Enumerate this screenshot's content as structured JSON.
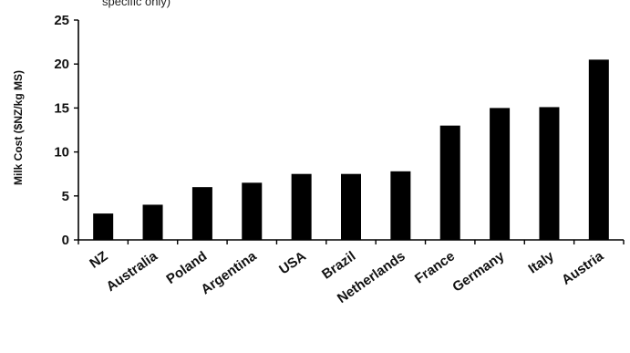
{
  "chart_data": {
    "type": "bar",
    "title": "",
    "top_fragment": "specific only)",
    "xlabel": "",
    "ylabel": "Milk Cost ($NZ/kg MS)",
    "categories": [
      "NZ",
      "Australia",
      "Poland",
      "Argentina",
      "USA",
      "Brazil",
      "Netherlands",
      "France",
      "Germany",
      "Italy",
      "Austria"
    ],
    "values": [
      3,
      4,
      6,
      6.5,
      7.5,
      7.5,
      7.8,
      13,
      15,
      15.1,
      20.5
    ],
    "ylim": [
      0,
      25
    ],
    "yticks": [
      "0",
      "5",
      "10",
      "15",
      "20",
      "25"
    ],
    "grid": false,
    "legend": "none",
    "bar_color": "#000000"
  }
}
